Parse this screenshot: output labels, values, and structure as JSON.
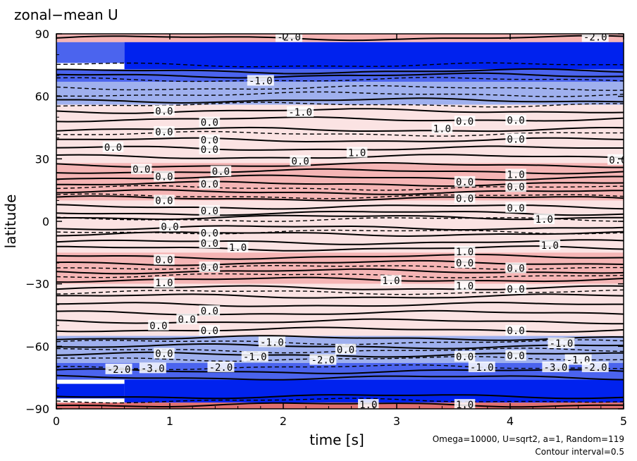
{
  "chart_data": {
    "type": "contour",
    "title": "zonal−mean U",
    "xlabel": "time [s]",
    "ylabel": "latitude",
    "xlim": [
      0,
      5
    ],
    "ylim": [
      -90,
      90
    ],
    "x_ticks": [
      "0",
      "1",
      "2",
      "3",
      "4",
      "5"
    ],
    "y_ticks": [
      "−90",
      "−60",
      "−30",
      "0",
      "30",
      "60",
      "90"
    ],
    "annotations": [
      "Omega=10000, U=sqrt2, a=1, Random=119",
      "Contour interval=0.5"
    ],
    "contour_interval": 0.5,
    "colors": {
      "strong_negative": "#0022ee",
      "moderate_negative": "#4b64ee",
      "weak_negative": "#9fb0ee",
      "weak_positive": "#fbe3e3",
      "moderate_positive": "#f5b5b5",
      "strong_positive": "#e07070",
      "contour_line": "#000000"
    },
    "bands": [
      {
        "lat_from": 86,
        "lat_to": 90,
        "t0": 0.0,
        "t1": 5.0,
        "level": "moderate_positive"
      },
      {
        "lat_from": 73,
        "lat_to": 86,
        "t0": 0.6,
        "t1": 5.0,
        "level": "strong_negative"
      },
      {
        "lat_from": 76,
        "lat_to": 86,
        "t0": 0.0,
        "t1": 0.6,
        "level": "moderate_negative"
      },
      {
        "lat_from": 67,
        "lat_to": 73,
        "t0": 0.0,
        "t1": 5.0,
        "level": "moderate_negative"
      },
      {
        "lat_from": 56,
        "lat_to": 67,
        "t0": 0.0,
        "t1": 5.0,
        "level": "weak_negative"
      },
      {
        "lat_from": 45,
        "lat_to": 56,
        "t0": 0.0,
        "t1": 5.0,
        "level": "weak_positive"
      },
      {
        "lat_from": 28,
        "lat_to": 45,
        "t0": 0.0,
        "t1": 5.0,
        "level": "weak_positive"
      },
      {
        "lat_from": 10,
        "lat_to": 28,
        "t0": 0.0,
        "t1": 5.0,
        "level": "moderate_positive"
      },
      {
        "lat_from": -15,
        "lat_to": 10,
        "t0": 0.0,
        "t1": 5.0,
        "level": "weak_positive"
      },
      {
        "lat_from": -30,
        "lat_to": -15,
        "t0": 0.0,
        "t1": 5.0,
        "level": "moderate_positive"
      },
      {
        "lat_from": -55,
        "lat_to": -30,
        "t0": 0.0,
        "t1": 5.0,
        "level": "weak_positive"
      },
      {
        "lat_from": -68,
        "lat_to": -55,
        "t0": 0.0,
        "t1": 5.0,
        "level": "weak_negative"
      },
      {
        "lat_from": -76,
        "lat_to": -68,
        "t0": 0.0,
        "t1": 5.0,
        "level": "moderate_negative"
      },
      {
        "lat_from": -87,
        "lat_to": -76,
        "t0": 0.6,
        "t1": 5.0,
        "level": "strong_negative"
      },
      {
        "lat_from": -85,
        "lat_to": -78,
        "t0": 0.0,
        "t1": 0.6,
        "level": "strong_negative"
      },
      {
        "lat_from": -90,
        "lat_to": -87,
        "t0": 0.0,
        "t1": 5.0,
        "level": "strong_positive"
      }
    ],
    "contour_lines": {
      "solid_lat": [
        88,
        72,
        70,
        58,
        53,
        49,
        44,
        39,
        35,
        31,
        27,
        24,
        21,
        18,
        14,
        11,
        7,
        4,
        2,
        -3,
        -6,
        -10,
        -13,
        -17,
        -20,
        -24,
        -28,
        -32,
        -36,
        -40,
        -44,
        -48,
        -52,
        -56,
        -60,
        -64,
        -72,
        -75,
        -84,
        -88
      ],
      "dashed_lat": [
        75,
        68,
        64,
        61,
        56,
        42,
        16,
        12,
        1,
        -5,
        -22,
        -26,
        -34,
        -58,
        -62,
        -66,
        -70,
        -86
      ]
    },
    "contour_labels": [
      {
        "text": "-2.0",
        "t": 2.05,
        "lat": 88.5
      },
      {
        "text": "-2.0",
        "t": 4.75,
        "lat": 88.5
      },
      {
        "text": "-1.0",
        "t": 1.8,
        "lat": 67.5
      },
      {
        "text": "0.0",
        "t": 0.95,
        "lat": 53
      },
      {
        "text": "-1.0",
        "t": 2.15,
        "lat": 52.5
      },
      {
        "text": "0.0",
        "t": 1.35,
        "lat": 47.5
      },
      {
        "text": "0.0",
        "t": 3.6,
        "lat": 48
      },
      {
        "text": "0.0",
        "t": 4.05,
        "lat": 48.5
      },
      {
        "text": "1.0",
        "t": 3.4,
        "lat": 44.5
      },
      {
        "text": "0.0",
        "t": 0.95,
        "lat": 43
      },
      {
        "text": "0.0",
        "t": 1.35,
        "lat": 39
      },
      {
        "text": "0.0",
        "t": 4.05,
        "lat": 39.5
      },
      {
        "text": "0.0",
        "t": 0.5,
        "lat": 35.5
      },
      {
        "text": "0.0",
        "t": 1.35,
        "lat": 34.5
      },
      {
        "text": "1.0",
        "t": 2.65,
        "lat": 33
      },
      {
        "text": "0.0",
        "t": 2.15,
        "lat": 29
      },
      {
        "text": "0.0",
        "t": 4.95,
        "lat": 29.5
      },
      {
        "text": "0.0",
        "t": 1.45,
        "lat": 24
      },
      {
        "text": "0.0",
        "t": 0.75,
        "lat": 25
      },
      {
        "text": "1.0",
        "t": 4.05,
        "lat": 22.5
      },
      {
        "text": "0.0",
        "t": 0.95,
        "lat": 21.5
      },
      {
        "text": "0.0",
        "t": 1.35,
        "lat": 18
      },
      {
        "text": "0.0",
        "t": 3.6,
        "lat": 19
      },
      {
        "text": "0.0",
        "t": 4.05,
        "lat": 16.5
      },
      {
        "text": "0.0",
        "t": 0.95,
        "lat": 10
      },
      {
        "text": "0.0",
        "t": 1.35,
        "lat": 5
      },
      {
        "text": "0.0",
        "t": 3.6,
        "lat": 11
      },
      {
        "text": "0.0",
        "t": 4.05,
        "lat": 6.5
      },
      {
        "text": "0.0",
        "t": 1.0,
        "lat": -2.5
      },
      {
        "text": "1.0",
        "t": 4.3,
        "lat": 1
      },
      {
        "text": "0.0",
        "t": 1.35,
        "lat": -5.5
      },
      {
        "text": "1.0",
        "t": 1.6,
        "lat": -12.5
      },
      {
        "text": "0.0",
        "t": 1.35,
        "lat": -10.5
      },
      {
        "text": "1.0",
        "t": 4.35,
        "lat": -11.5
      },
      {
        "text": "1.0",
        "t": 3.6,
        "lat": -14.5
      },
      {
        "text": "0.0",
        "t": 0.95,
        "lat": -18.5
      },
      {
        "text": "0.0",
        "t": 1.35,
        "lat": -22
      },
      {
        "text": "0.0",
        "t": 3.6,
        "lat": -20
      },
      {
        "text": "0.0",
        "t": 4.05,
        "lat": -22.5
      },
      {
        "text": "1.0",
        "t": 0.95,
        "lat": -29.5
      },
      {
        "text": "1.0",
        "t": 2.95,
        "lat": -28.5
      },
      {
        "text": "1.0",
        "t": 3.6,
        "lat": -31
      },
      {
        "text": "0.0",
        "t": 4.05,
        "lat": -32.5
      },
      {
        "text": "0.0",
        "t": 1.35,
        "lat": -43
      },
      {
        "text": "0.0",
        "t": 1.15,
        "lat": -47
      },
      {
        "text": "0.0",
        "t": 0.9,
        "lat": -50
      },
      {
        "text": "0.0",
        "t": 1.35,
        "lat": -52.5
      },
      {
        "text": "0.0",
        "t": 4.05,
        "lat": -52.5
      },
      {
        "text": "-1.0",
        "t": 1.9,
        "lat": -58
      },
      {
        "text": "-1.0",
        "t": 4.45,
        "lat": -58.5
      },
      {
        "text": "0.0",
        "t": 0.95,
        "lat": -63.5
      },
      {
        "text": "0.0",
        "t": 2.55,
        "lat": -61.5
      },
      {
        "text": "-1.0",
        "t": 1.75,
        "lat": -65
      },
      {
        "text": "-2.0",
        "t": 2.35,
        "lat": -66.5
      },
      {
        "text": "0.0",
        "t": 3.6,
        "lat": -65
      },
      {
        "text": "0.0",
        "t": 4.05,
        "lat": -64.5
      },
      {
        "text": "-1.0",
        "t": 4.6,
        "lat": -66.5
      },
      {
        "text": "-2.0",
        "t": 1.45,
        "lat": -70
      },
      {
        "text": "-2.0",
        "t": 0.55,
        "lat": -71
      },
      {
        "text": "-3.0",
        "t": 0.85,
        "lat": -70.5
      },
      {
        "text": "-1.0",
        "t": 3.75,
        "lat": -70
      },
      {
        "text": "-3.0",
        "t": 4.4,
        "lat": -70
      },
      {
        "text": "-2.0",
        "t": 4.75,
        "lat": -70
      },
      {
        "text": "1.0",
        "t": 2.75,
        "lat": -88
      },
      {
        "text": "1.0",
        "t": 3.6,
        "lat": -88
      }
    ]
  }
}
